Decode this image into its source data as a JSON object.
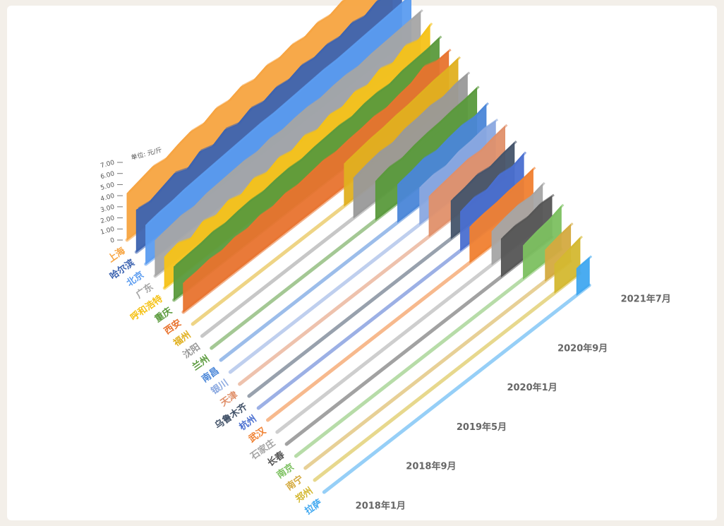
{
  "chart_data": {
    "type": "area3d",
    "y_axis_label": "单位: 元/斤",
    "categories": [
      "2018年1月",
      null,
      null,
      null,
      "2018年9月",
      null,
      null,
      null,
      "2019年5月",
      null,
      null,
      null,
      "2020年1月",
      null,
      null,
      null,
      "2020年9月",
      null,
      null,
      null,
      null,
      "2021年7月"
    ],
    "ylim": [
      0,
      7
    ],
    "yticks": [
      0,
      {
        "value": 1,
        "label": "1.00"
      },
      {
        "value": 2,
        "label": "2.00"
      },
      {
        "value": 3,
        "label": "3.00"
      },
      {
        "value": 4,
        "label": "4.00"
      },
      {
        "value": 5,
        "label": "5.00"
      },
      {
        "value": 6,
        "label": "6.00"
      },
      {
        "value": 7,
        "label": "7.00"
      }
    ],
    "series": [
      {
        "name": "上海",
        "color": "#f7a440",
        "values": [
          4.2,
          4.5,
          4.8,
          4.6,
          5.0,
          5.3,
          5.1,
          5.6,
          5.4,
          5.8,
          5.5,
          5.9,
          5.7,
          6.0,
          5.8,
          6.2,
          6.0,
          6.4,
          6.1,
          6.6,
          6.3,
          6.8
        ]
      },
      {
        "name": "哈尔滨",
        "color": "#3c63b0",
        "values": [
          3.8,
          3.6,
          4.0,
          4.4,
          3.9,
          4.6,
          4.2,
          4.8,
          4.4,
          4.9,
          4.6,
          5.0,
          4.8,
          5.2,
          5.0,
          5.3,
          5.1,
          5.5,
          5.2,
          5.7,
          5.4,
          6.0
        ]
      },
      {
        "name": "北京",
        "color": "#5b9cf0",
        "values": [
          3.5,
          3.7,
          3.8,
          4.0,
          4.1,
          4.2,
          4.3,
          4.4,
          4.5,
          4.6,
          4.6,
          4.7,
          4.8,
          4.9,
          5.0,
          5.0,
          5.1,
          5.2,
          5.3,
          5.4,
          5.5,
          5.6
        ]
      },
      {
        "name": "广东",
        "color": "#a5a5a5",
        "values": [
          3.2,
          3.4,
          3.6,
          3.5,
          3.8,
          3.9,
          4.0,
          4.1,
          4.0,
          4.3,
          4.2,
          4.4,
          4.5,
          4.4,
          4.6,
          4.7,
          4.6,
          4.8,
          4.9,
          5.0,
          5.1,
          5.2
        ]
      },
      {
        "name": "呼和浩特",
        "color": "#f5c218",
        "values": [
          2.8,
          3.1,
          2.6,
          3.3,
          2.9,
          3.4,
          3.0,
          3.6,
          3.2,
          3.7,
          3.4,
          3.9,
          3.5,
          4.0,
          3.8,
          4.3,
          4.0,
          4.6,
          4.2,
          4.9,
          4.5,
          5.1
        ]
      },
      {
        "name": "重庆",
        "color": "#5a9a3c",
        "values": [
          3.0,
          3.1,
          3.2,
          3.4,
          3.3,
          3.5,
          3.6,
          3.5,
          3.7,
          3.8,
          3.7,
          3.9,
          4.0,
          4.1,
          4.0,
          4.3,
          4.4,
          4.3,
          4.6,
          4.7,
          4.8,
          5.0
        ]
      },
      {
        "name": "西安",
        "color": "#e8732e",
        "values": [
          2.6,
          2.7,
          2.9,
          2.8,
          3.1,
          3.0,
          3.3,
          3.2,
          3.5,
          3.4,
          3.6,
          3.8,
          3.7,
          3.9,
          4.0,
          4.2,
          4.1,
          4.4,
          4.6,
          5.2,
          4.8,
          4.9
        ]
      },
      {
        "name": "福州",
        "color": "#e0b020",
        "values": [
          null,
          null,
          null,
          null,
          null,
          null,
          null,
          null,
          null,
          null,
          null,
          null,
          3.8,
          4.0,
          4.2,
          4.3,
          4.5,
          4.6,
          4.8,
          5.0,
          5.1,
          5.3
        ]
      },
      {
        "name": "沈阳",
        "color": "#999999",
        "values": [
          null,
          null,
          null,
          null,
          null,
          null,
          null,
          null,
          null,
          null,
          null,
          null,
          3.6,
          3.9,
          4.1,
          4.0,
          4.4,
          4.5,
          4.7,
          4.6,
          4.9,
          5.0
        ]
      },
      {
        "name": "兰州",
        "color": "#5a9a3c",
        "values": [
          null,
          null,
          null,
          null,
          null,
          null,
          null,
          null,
          null,
          null,
          null,
          null,
          null,
          3.5,
          3.8,
          3.7,
          4.0,
          4.2,
          4.3,
          4.5,
          4.6,
          4.8
        ]
      },
      {
        "name": "南昌",
        "color": "#4a86d8",
        "values": [
          null,
          null,
          null,
          null,
          null,
          null,
          null,
          null,
          null,
          null,
          null,
          null,
          null,
          null,
          3.4,
          3.6,
          3.9,
          3.7,
          4.0,
          4.2,
          4.1,
          4.4
        ]
      },
      {
        "name": "银川",
        "color": "#8aa8e0",
        "values": [
          null,
          null,
          null,
          null,
          null,
          null,
          null,
          null,
          null,
          null,
          null,
          null,
          null,
          null,
          null,
          3.3,
          3.5,
          3.4,
          3.8,
          3.9,
          4.1,
          4.0
        ]
      },
      {
        "name": "天津",
        "color": "#e0906a",
        "values": [
          null,
          null,
          null,
          null,
          null,
          null,
          null,
          null,
          null,
          null,
          null,
          null,
          null,
          null,
          null,
          3.6,
          3.8,
          4.0,
          4.2,
          4.1,
          4.4,
          4.6
        ]
      },
      {
        "name": "乌鲁木齐",
        "color": "#44546a",
        "values": [
          null,
          null,
          null,
          null,
          null,
          null,
          null,
          null,
          null,
          null,
          null,
          null,
          null,
          null,
          null,
          null,
          3.4,
          3.6,
          3.9,
          3.7,
          4.0,
          4.2
        ]
      },
      {
        "name": "杭州",
        "color": "#4a6fd0",
        "values": [
          null,
          null,
          null,
          null,
          null,
          null,
          null,
          null,
          null,
          null,
          null,
          null,
          null,
          null,
          null,
          null,
          3.5,
          3.8,
          3.6,
          4.1,
          3.9,
          4.3
        ]
      },
      {
        "name": "武汉",
        "color": "#f08030",
        "values": [
          null,
          null,
          null,
          null,
          null,
          null,
          null,
          null,
          null,
          null,
          null,
          null,
          null,
          null,
          null,
          null,
          3.2,
          3.4,
          3.5,
          3.7,
          3.8,
          4.0
        ]
      },
      {
        "name": "石家庄",
        "color": "#a5a5a5",
        "values": [
          null,
          null,
          null,
          null,
          null,
          null,
          null,
          null,
          null,
          null,
          null,
          null,
          null,
          null,
          null,
          null,
          null,
          3.0,
          3.3,
          3.5,
          3.4,
          3.7
        ]
      },
      {
        "name": "长春",
        "color": "#555555",
        "values": [
          null,
          null,
          null,
          null,
          null,
          null,
          null,
          null,
          null,
          null,
          null,
          null,
          null,
          null,
          null,
          null,
          null,
          3.4,
          3.6,
          3.5,
          3.8,
          3.7
        ]
      },
      {
        "name": "南京",
        "color": "#7cc060",
        "values": [
          null,
          null,
          null,
          null,
          null,
          null,
          null,
          null,
          null,
          null,
          null,
          null,
          null,
          null,
          null,
          null,
          null,
          null,
          3.0,
          3.3,
          3.5,
          3.9
        ]
      },
      {
        "name": "南宁",
        "color": "#d4aa40",
        "values": [
          null,
          null,
          null,
          null,
          null,
          null,
          null,
          null,
          null,
          null,
          null,
          null,
          null,
          null,
          null,
          null,
          null,
          null,
          null,
          2.8,
          3.1,
          3.3
        ]
      },
      {
        "name": "郑州",
        "color": "#d4b830",
        "values": [
          null,
          null,
          null,
          null,
          null,
          null,
          null,
          null,
          null,
          null,
          null,
          null,
          null,
          null,
          null,
          null,
          null,
          null,
          null,
          2.6,
          2.9,
          3.2
        ]
      },
      {
        "name": "拉萨",
        "color": "#40a8f0",
        "values": [
          null,
          null,
          null,
          null,
          null,
          null,
          null,
          null,
          null,
          null,
          null,
          null,
          null,
          null,
          null,
          null,
          null,
          null,
          null,
          null,
          2.4,
          2.5
        ]
      }
    ]
  }
}
